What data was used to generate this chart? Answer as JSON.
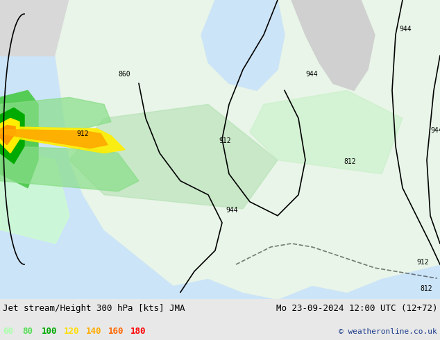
{
  "title_left": "Jet stream/Height 300 hPa [kts] JMA",
  "title_right": "Mo 23-09-2024 12:00 UTC (12+72)",
  "copyright": "© weatheronline.co.uk",
  "legend_values": [
    60,
    80,
    100,
    120,
    140,
    160,
    180
  ],
  "legend_colors": [
    "#aaffaa",
    "#55dd55",
    "#00aa00",
    "#ffdd00",
    "#ffaa00",
    "#ff6600",
    "#ff0000"
  ],
  "bg_color": "#e8e8e8",
  "map_bg": "#f0f0f0",
  "sea_color": "#ddeeff",
  "land_color_light": "#eeffee",
  "contour_color": "#000000",
  "title_fontsize": 9,
  "legend_fontsize": 9,
  "copyright_fontsize": 8,
  "fig_width": 6.34,
  "fig_height": 4.9
}
